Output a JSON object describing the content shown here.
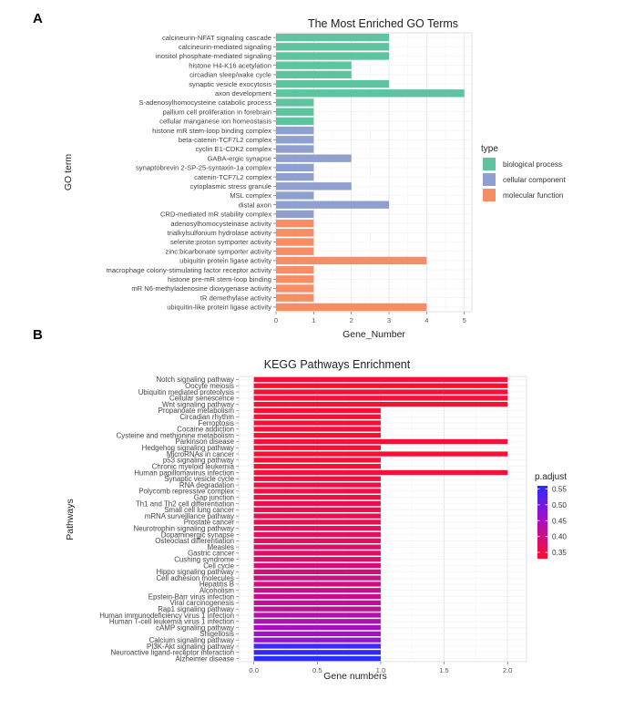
{
  "panel_a_letter": "A",
  "panel_b_letter": "B",
  "chart_data": [
    {
      "type": "bar",
      "orientation": "horizontal",
      "title": "The Most Enriched GO Terms",
      "xlabel": "Gene_Number",
      "ylabel": "GO term",
      "xlim": [
        0,
        5.2
      ],
      "xticks": [
        0,
        1,
        2,
        3,
        4,
        5
      ],
      "grid": true,
      "legend_title": "type",
      "legend_position": "right",
      "legend": [
        {
          "name": "biological process",
          "color": "#5ec49f"
        },
        {
          "name": "cellular component",
          "color": "#8f9fd0"
        },
        {
          "name": "molecular function",
          "color": "#f78d67"
        }
      ],
      "categories": [
        "calcineurin-NFAT signaling cascade",
        "calcineurin-mediated signaling",
        "inositol phosphate-mediated signaling",
        "histone H4-K16 acetylation",
        "circadian sleep/wake cycle",
        "synaptic vesicle exocytosis",
        "axon development",
        "S-adenosylhomocysteine catabolic process",
        "pallium cell proliferation in forebrain",
        "cellular manganese ion homeostasis",
        "histone mR stem-loop binding complex",
        "beta-catenin-TCF7L2 complex",
        "cyclin E1-CDK2 complex",
        "GABA-ergic synapse",
        "synaptobrevin 2-SP-25-syntaxin-1a complex",
        "catenin-TCF7L2 complex",
        "cytoplasmic stress granule",
        "MSL complex",
        "distal axon",
        "CRD-mediated mR stability complex",
        "adenosylhomocysteinase activity",
        "trialkylsulfonium hydrolase activity",
        "selenite:proton symporter activity",
        "zinc:bicarbonate symporter activity",
        "ubiquitin protein ligase activity",
        "macrophage colony-stimulating factor receptor activity",
        "histone pre-mR stem-loop binding",
        "mR N6-methyladenosine dioxygenase activity",
        "tR demethylase activity",
        "ubiquitin-like protein ligase activity"
      ],
      "values": [
        3,
        3,
        3,
        2,
        2,
        3,
        5,
        1,
        1,
        1,
        1,
        1,
        1,
        2,
        1,
        1,
        2,
        1,
        3,
        1,
        1,
        1,
        1,
        1,
        4,
        1,
        1,
        1,
        1,
        4
      ],
      "types": [
        0,
        0,
        0,
        0,
        0,
        0,
        0,
        0,
        0,
        0,
        1,
        1,
        1,
        1,
        1,
        1,
        1,
        1,
        1,
        1,
        2,
        2,
        2,
        2,
        2,
        2,
        2,
        2,
        2,
        2
      ]
    },
    {
      "type": "bar",
      "orientation": "horizontal",
      "title": "KEGG Pathways Enrichment",
      "xlabel": "Gene numbers",
      "ylabel": "Pathways",
      "xlim": [
        -0.12,
        2.15
      ],
      "xticks": [
        0.0,
        0.5,
        1.0,
        1.5,
        2.0
      ],
      "xtick_labels": [
        "0.0",
        "0.5",
        "1.0",
        "1.5",
        "2.0"
      ],
      "grid": true,
      "colorbar_title": "p.adjust",
      "colorbar_range": [
        0.33,
        0.56
      ],
      "colorbar_ticks": [
        0.55,
        0.5,
        0.45,
        0.4,
        0.35
      ],
      "colorbar_tick_labels": [
        "0.55",
        "0.50",
        "0.45",
        "0.40",
        "0.35"
      ],
      "colorbar_low_color": "#ff0f2a",
      "colorbar_high_color": "#2b2bff",
      "legend_position": "right",
      "categories": [
        "Notch signaling pathway",
        "Oocyte meiosis",
        "Ubiquitin mediated proteolysis",
        "Cellular senescence",
        "Wnt signaling pathway",
        "Propanoate metabolism",
        "Circadian rhythm",
        "Ferroptosis",
        "Cocaine addiction",
        "Cysteine and methionine metabolism",
        "Parkinson disease",
        "Hedgehog signaling pathway",
        "MicroRNAs in cancer",
        "p53 signaling pathway",
        "Chronic myeloid leukemia",
        "Human papillomavirus infection",
        "Synaptic vesicle cycle",
        "RNA degradation",
        "Polycomb repressive complex",
        "Gap junction",
        "Th1 and Th2 cell differentiation",
        "Small cell lung cancer",
        "mRNA surveillance pathway",
        "Prostate cancer",
        "Neurotrophin signaling pathway",
        "Dopaminergic synapse",
        "Osteoclast differentiation",
        "Measles",
        "Gastric cancer",
        "Cushing syndrome",
        "Cell cycle",
        "Hippo signaling pathway",
        "Cell adhesion molecules",
        "Hepatitis B",
        "Alcoholism",
        "Epstein-Barr virus infection",
        "Viral carcinogenesis",
        "Rap1 signaling pathway",
        "Human immunodeficiency virus 1 infection",
        "Human T-cell leukemia virus 1 infection",
        "cAMP signaling pathway",
        "Shigellosis",
        "Calcium signaling pathway",
        "PI3K-Akt signaling pathway",
        "Neuroactive ligand-receptor interaction",
        "Alzheimer disease"
      ],
      "values": [
        2,
        2,
        2,
        2,
        2,
        1,
        1,
        1,
        1,
        1,
        2,
        1,
        2,
        1,
        1,
        2,
        1,
        1,
        1,
        1,
        1,
        1,
        1,
        1,
        1,
        1,
        1,
        1,
        1,
        1,
        1,
        1,
        1,
        1,
        1,
        1,
        1,
        1,
        1,
        1,
        1,
        1,
        1,
        1,
        1,
        1
      ],
      "p_adjust": [
        0.34,
        0.34,
        0.34,
        0.34,
        0.34,
        0.34,
        0.34,
        0.34,
        0.34,
        0.34,
        0.34,
        0.34,
        0.34,
        0.34,
        0.34,
        0.34,
        0.35,
        0.35,
        0.35,
        0.35,
        0.36,
        0.36,
        0.36,
        0.36,
        0.37,
        0.37,
        0.37,
        0.38,
        0.38,
        0.38,
        0.39,
        0.39,
        0.4,
        0.4,
        0.41,
        0.41,
        0.42,
        0.42,
        0.43,
        0.44,
        0.45,
        0.46,
        0.47,
        0.54,
        0.55,
        0.56
      ]
    }
  ]
}
